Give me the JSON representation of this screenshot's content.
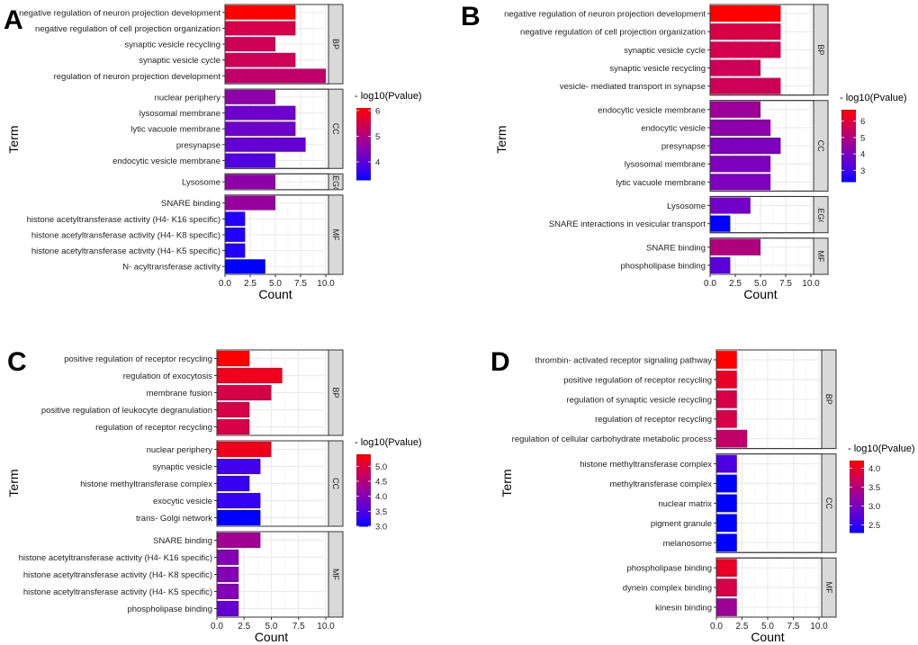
{
  "chart_data": [
    {
      "panel_label": "A",
      "type": "bar",
      "orientation": "horizontal",
      "xlabel": "Count",
      "ylabel": "Term",
      "xlim": [
        0,
        10
      ],
      "xticks": [
        "0.0",
        "2.5",
        "5.0",
        "7.5",
        "10.0"
      ],
      "grid": true,
      "legend": {
        "title": "- log10(Pvalue)",
        "placement": "right",
        "ticks": [
          4,
          5,
          6
        ],
        "range": [
          3.3,
          6.1
        ],
        "low_color": "#0000FF",
        "high_color": "#FF0000"
      },
      "facets": [
        {
          "name": "BP",
          "terms": [
            {
              "term": "negative regulation of neuron projection development",
              "count": 7,
              "neg_log10_p": 6.1
            },
            {
              "term": "negative regulation of cell projection organization",
              "count": 7,
              "neg_log10_p": 5.5
            },
            {
              "term": "synaptic vesicle recycling",
              "count": 5,
              "neg_log10_p": 5.4
            },
            {
              "term": "synaptic vesicle cycle",
              "count": 7,
              "neg_log10_p": 5.4
            },
            {
              "term": "regulation of neuron projection development",
              "count": 10,
              "neg_log10_p": 5.2
            }
          ]
        },
        {
          "name": "CC",
          "terms": [
            {
              "term": "nuclear periphery",
              "count": 5,
              "neg_log10_p": 4.6
            },
            {
              "term": "lysosomal membrane",
              "count": 7,
              "neg_log10_p": 4.2
            },
            {
              "term": "lytic vacuole membrane",
              "count": 7,
              "neg_log10_p": 4.2
            },
            {
              "term": "presynapse",
              "count": 8,
              "neg_log10_p": 4.1
            },
            {
              "term": "endocytic vesicle membrane",
              "count": 5,
              "neg_log10_p": 3.9
            }
          ]
        },
        {
          "name": "KEGG",
          "terms": [
            {
              "term": "Lysosome",
              "count": 5,
              "neg_log10_p": 4.6
            }
          ]
        },
        {
          "name": "MF",
          "terms": [
            {
              "term": "SNARE binding",
              "count": 5,
              "neg_log10_p": 4.7
            },
            {
              "term": "histone acetyltransferase activity (H4- K16 specific)",
              "count": 2,
              "neg_log10_p": 3.5
            },
            {
              "term": "histone acetyltransferase activity (H4- K8 specific)",
              "count": 2,
              "neg_log10_p": 3.5
            },
            {
              "term": "histone acetyltransferase activity (H4- K5 specific)",
              "count": 2,
              "neg_log10_p": 3.5
            },
            {
              "term": "N- acyltransferase activity",
              "count": 4,
              "neg_log10_p": 3.3
            }
          ]
        }
      ]
    },
    {
      "panel_label": "B",
      "type": "bar",
      "orientation": "horizontal",
      "xlabel": "Count",
      "ylabel": "Term",
      "xlim": [
        0,
        10
      ],
      "xticks": [
        "0.0",
        "2.5",
        "5.0",
        "7.5",
        "10.0"
      ],
      "grid": true,
      "legend": {
        "title": "- log10(Pvalue)",
        "placement": "right",
        "ticks": [
          3,
          4,
          5,
          6
        ],
        "range": [
          2.3,
          6.7
        ],
        "low_color": "#0000FF",
        "high_color": "#FF0000"
      },
      "facets": [
        {
          "name": "BP",
          "terms": [
            {
              "term": "negative regulation of neuron projection development",
              "count": 7,
              "neg_log10_p": 6.7
            },
            {
              "term": "negative regulation of cell projection organization",
              "count": 7,
              "neg_log10_p": 5.8
            },
            {
              "term": "synaptic vesicle cycle",
              "count": 7,
              "neg_log10_p": 5.7
            },
            {
              "term": "synaptic vesicle recycling",
              "count": 5,
              "neg_log10_p": 5.6
            },
            {
              "term": "vesicle- mediated transport in synapse",
              "count": 7,
              "neg_log10_p": 5.6
            }
          ]
        },
        {
          "name": "CC",
          "terms": [
            {
              "term": "endocytic vesicle membrane",
              "count": 5,
              "neg_log10_p": 4.6
            },
            {
              "term": "endocytic vesicle",
              "count": 6,
              "neg_log10_p": 4.3
            },
            {
              "term": "presynapse",
              "count": 7,
              "neg_log10_p": 4.0
            },
            {
              "term": "lysosomal membrane",
              "count": 6,
              "neg_log10_p": 4.0
            },
            {
              "term": "lytic vacuole membrane",
              "count": 6,
              "neg_log10_p": 4.0
            }
          ]
        },
        {
          "name": "KEGG",
          "terms": [
            {
              "term": "Lysosome",
              "count": 4,
              "neg_log10_p": 3.8
            },
            {
              "term": "SNARE interactions in vesicular transport",
              "count": 2,
              "neg_log10_p": 2.3
            }
          ]
        },
        {
          "name": "MF",
          "terms": [
            {
              "term": "SNARE binding",
              "count": 5,
              "neg_log10_p": 5.0
            },
            {
              "term": "phospholipase binding",
              "count": 2,
              "neg_log10_p": 3.4
            }
          ]
        }
      ]
    },
    {
      "panel_label": "C",
      "type": "bar",
      "orientation": "horizontal",
      "xlabel": "Count",
      "ylabel": "Term",
      "xlim": [
        0,
        10
      ],
      "xticks": [
        "0.0",
        "2.5",
        "5.0",
        "7.5",
        "10.0"
      ],
      "grid": true,
      "legend": {
        "title": "- log10(Pvalue)",
        "placement": "right",
        "ticks": [
          "3.0",
          "3.5",
          "4.0",
          "4.5",
          "5.0"
        ],
        "range": [
          3.0,
          5.4
        ],
        "low_color": "#0000FF",
        "high_color": "#FF0000"
      },
      "facets": [
        {
          "name": "BP",
          "terms": [
            {
              "term": "positive regulation of receptor recycling",
              "count": 3,
              "neg_log10_p": 5.4
            },
            {
              "term": "regulation of exocytosis",
              "count": 6,
              "neg_log10_p": 5.2
            },
            {
              "term": "membrane fusion",
              "count": 5,
              "neg_log10_p": 4.9
            },
            {
              "term": "positive regulation of leukocyte degranulation",
              "count": 3,
              "neg_log10_p": 4.9
            },
            {
              "term": "regulation of receptor recycling",
              "count": 3,
              "neg_log10_p": 4.9
            }
          ]
        },
        {
          "name": "CC",
          "terms": [
            {
              "term": "nuclear periphery",
              "count": 5,
              "neg_log10_p": 5.2
            },
            {
              "term": "synaptic vesicle",
              "count": 4,
              "neg_log10_p": 3.4
            },
            {
              "term": "histone methyltransferase complex",
              "count": 3,
              "neg_log10_p": 3.3
            },
            {
              "term": "exocytic vesicle",
              "count": 4,
              "neg_log10_p": 3.3
            },
            {
              "term": "trans- Golgi network",
              "count": 4,
              "neg_log10_p": 3.0
            }
          ]
        },
        {
          "name": "MF",
          "terms": [
            {
              "term": "SNARE binding",
              "count": 4,
              "neg_log10_p": 4.3
            },
            {
              "term": "histone acetyltransferase activity (H4- K16 specific)",
              "count": 2,
              "neg_log10_p": 4.0
            },
            {
              "term": "histone acetyltransferase activity (H4- K8 specific)",
              "count": 2,
              "neg_log10_p": 4.0
            },
            {
              "term": "histone acetyltransferase activity (H4- K5 specific)",
              "count": 2,
              "neg_log10_p": 4.0
            },
            {
              "term": "phospholipase binding",
              "count": 2,
              "neg_log10_p": 3.7
            }
          ]
        }
      ]
    },
    {
      "panel_label": "D",
      "type": "bar",
      "orientation": "horizontal",
      "xlabel": "Count",
      "ylabel": "Term",
      "xlim": [
        0,
        10
      ],
      "xticks": [
        "0.0",
        "2.5",
        "5.0",
        "7.5",
        "10.0"
      ],
      "grid": true,
      "legend": {
        "title": "- log10(Pvalue)",
        "placement": "right",
        "ticks": [
          "2.5",
          "3.0",
          "3.5",
          "4.0"
        ],
        "range": [
          2.3,
          4.2
        ],
        "low_color": "#0000FF",
        "high_color": "#FF0000"
      },
      "facets": [
        {
          "name": "BP",
          "terms": [
            {
              "term": "thrombin- activated receptor signaling pathway",
              "count": 2,
              "neg_log10_p": 4.2
            },
            {
              "term": "positive regulation of receptor recycling",
              "count": 2,
              "neg_log10_p": 4.0
            },
            {
              "term": "regulation of synaptic vesicle recycling",
              "count": 2,
              "neg_log10_p": 3.8
            },
            {
              "term": "regulation of receptor recycling",
              "count": 2,
              "neg_log10_p": 3.8
            },
            {
              "term": "regulation of cellular carbohydrate metabolic process",
              "count": 3,
              "neg_log10_p": 3.6
            }
          ]
        },
        {
          "name": "CC",
          "terms": [
            {
              "term": "histone methyltransferase complex",
              "count": 2,
              "neg_log10_p": 2.7
            },
            {
              "term": "methyltransferase complex",
              "count": 2,
              "neg_log10_p": 2.3
            },
            {
              "term": "nuclear matrix",
              "count": 2,
              "neg_log10_p": 2.3
            },
            {
              "term": "pigment granule",
              "count": 2,
              "neg_log10_p": 2.3
            },
            {
              "term": "melanosome",
              "count": 2,
              "neg_log10_p": 2.3
            }
          ]
        },
        {
          "name": "MF",
          "terms": [
            {
              "term": "phospholipase binding",
              "count": 2,
              "neg_log10_p": 4.0
            },
            {
              "term": "dynein complex binding",
              "count": 2,
              "neg_log10_p": 3.8
            },
            {
              "term": "kinesin binding",
              "count": 2,
              "neg_log10_p": 3.3
            }
          ]
        }
      ]
    }
  ]
}
